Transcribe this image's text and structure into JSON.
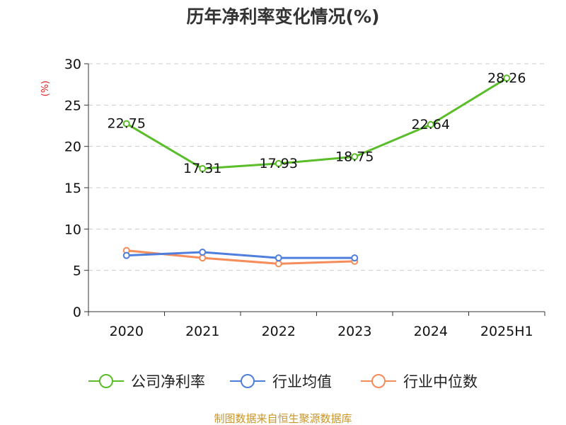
{
  "chart_data": {
    "type": "line",
    "title": "历年净利率变化情况(%)",
    "unit_label": "(%)",
    "categories": [
      "2020",
      "2021",
      "2022",
      "2023",
      "2024",
      "2025H1"
    ],
    "ylim": [
      0,
      30
    ],
    "yticks": [
      0,
      5,
      10,
      15,
      20,
      25,
      30
    ],
    "grid": true,
    "legend_position": "bottom",
    "series": [
      {
        "name": "公司净利率",
        "color": "#5cbd2a",
        "values": [
          22.75,
          17.31,
          17.93,
          18.75,
          22.64,
          28.26
        ],
        "show_labels": true
      },
      {
        "name": "行业均值",
        "color": "#4f7fdc",
        "values": [
          6.8,
          7.2,
          6.5,
          6.5,
          null,
          null
        ],
        "show_labels": false
      },
      {
        "name": "行业中位数",
        "color": "#f58c5a",
        "values": [
          7.4,
          6.5,
          5.8,
          6.1,
          null,
          null
        ],
        "show_labels": false
      }
    ],
    "source": "制图数据来自恒生聚源数据库"
  }
}
